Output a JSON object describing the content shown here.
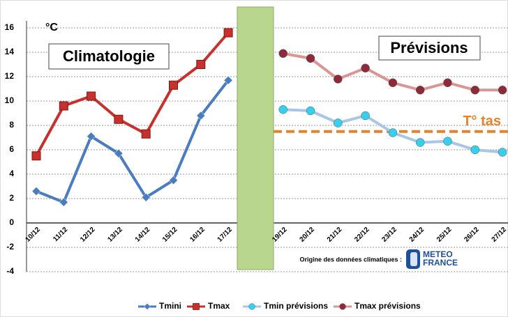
{
  "chart_data": {
    "type": "line",
    "unit_label": "°C",
    "annotations": {
      "left": "Climatologie",
      "right": "Prévisions",
      "source": "Origine des données climatiques :",
      "logo_top": "METEO",
      "logo_bottom": "FRANCE"
    },
    "categories": [
      "10/12",
      "11/12",
      "12/12",
      "13/12",
      "14/12",
      "15/12",
      "16/12",
      "17/12",
      null,
      "19/12",
      "20/12",
      "21/12",
      "22/12",
      "23/12",
      "24/12",
      "25/12",
      "26/12",
      "27/12"
    ],
    "series": [
      {
        "name": "Tmini",
        "color": "#4a7cc0",
        "marker": "diamond",
        "marker_color": "#4a7cc0",
        "values": [
          2.6,
          1.7,
          7.1,
          5.7,
          2.1,
          3.5,
          8.8,
          11.7,
          null,
          null,
          null,
          null,
          null,
          null,
          null,
          null,
          null,
          null
        ]
      },
      {
        "name": "Tmax",
        "color": "#c9302c",
        "marker": "square",
        "marker_color": "#c9302c",
        "values": [
          5.5,
          9.6,
          10.4,
          8.5,
          7.3,
          11.3,
          13.0,
          15.6,
          null,
          null,
          null,
          null,
          null,
          null,
          null,
          null,
          null,
          null
        ]
      },
      {
        "name": "Tmin prévisions",
        "color": "#a9c6e6",
        "marker": "circle",
        "marker_color": "#35d0f0",
        "values": [
          null,
          null,
          null,
          null,
          null,
          null,
          null,
          null,
          null,
          9.3,
          9.2,
          8.2,
          8.8,
          7.4,
          6.6,
          6.7,
          6.0,
          5.8
        ]
      },
      {
        "name": "Tmax prévisions",
        "color": "#d99694",
        "marker": "circle",
        "marker_color": "#8e2a3a",
        "values": [
          null,
          null,
          null,
          null,
          null,
          null,
          null,
          null,
          null,
          13.9,
          13.5,
          11.8,
          12.7,
          11.5,
          10.9,
          11.5,
          10.9,
          10.9
        ]
      }
    ],
    "threshold": {
      "value": 7.5,
      "label": "T° tas",
      "color": "#e8822a"
    },
    "ylim": [
      -4,
      16
    ],
    "yticks": [
      -4,
      -2,
      0,
      2,
      4,
      6,
      8,
      10,
      12,
      14,
      16
    ],
    "grid": true,
    "legend": "bottom"
  }
}
